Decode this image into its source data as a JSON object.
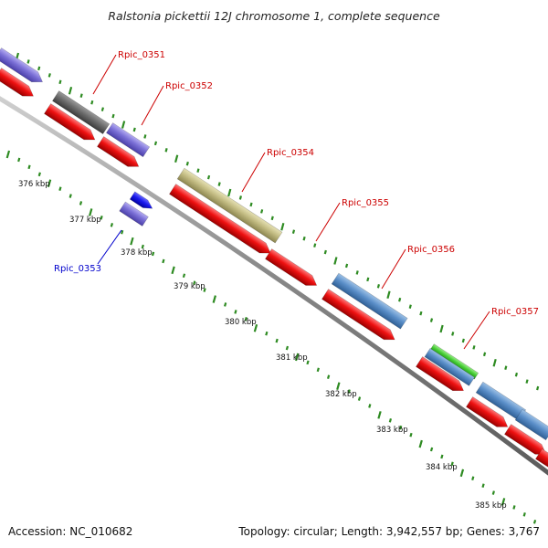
{
  "title": "Ralstonia pickettii 12J chromosome 1, complete sequence",
  "footer": {
    "accession": "Accession: NC_010682",
    "summary": "Topology: circular; Length: 3,942,557 bp; Genes: 3,767"
  },
  "colors": {
    "backbone": "#8a8a8a",
    "tick": "#2e8b22",
    "cds_red": "#ee1111",
    "gene_purple": "#7a6fd6",
    "gene_gray": "#6c6c6c",
    "gene_khaki": "#c2bb82",
    "gene_steelblue": "#5b8fc9",
    "gene_green": "#44cc33",
    "gene_blue": "#1a1aee",
    "label_red": "#cc0000",
    "label_blue": "#0000cc"
  },
  "kbp_ticks": [
    "376 kbp",
    "377 kbp",
    "378 kbp",
    "379 kbp",
    "380 kbp",
    "381 kbp",
    "382 kbp",
    "383 kbp",
    "384 kbp",
    "385 kbp"
  ],
  "gene_labels": [
    {
      "name": "Rpic_0351",
      "color": "red"
    },
    {
      "name": "Rpic_0352",
      "color": "red"
    },
    {
      "name": "Rpic_0353",
      "color": "blue"
    },
    {
      "name": "Rpic_0354",
      "color": "red"
    },
    {
      "name": "Rpic_0355",
      "color": "red"
    },
    {
      "name": "Rpic_0356",
      "color": "red"
    },
    {
      "name": "Rpic_0357",
      "color": "red"
    }
  ]
}
